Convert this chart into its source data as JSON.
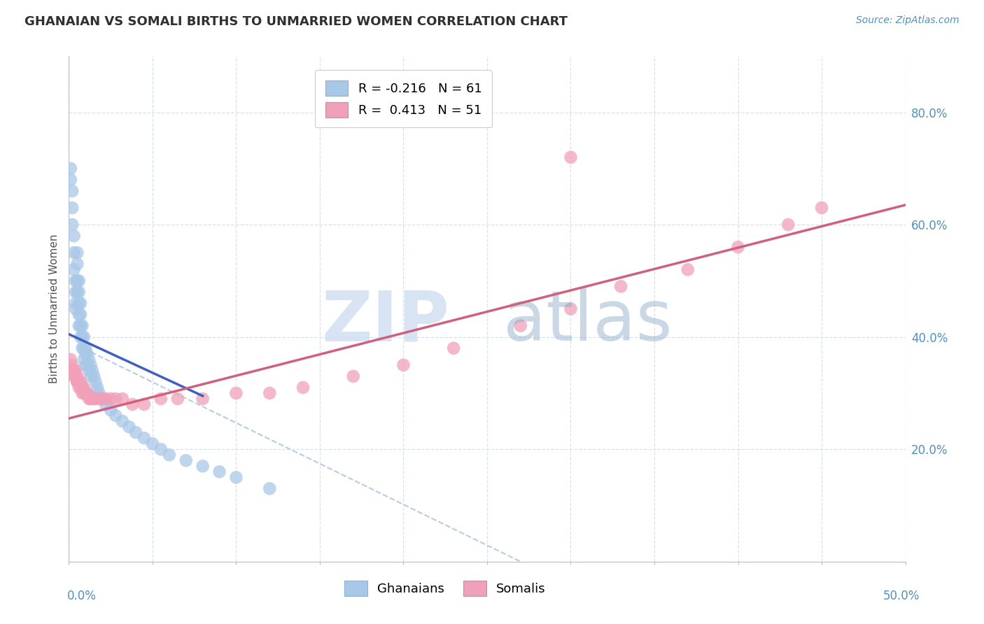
{
  "title": "GHANAIAN VS SOMALI BIRTHS TO UNMARRIED WOMEN CORRELATION CHART",
  "source": "Source: ZipAtlas.com",
  "ylabel": "Births to Unmarried Women",
  "xlim": [
    0.0,
    0.5
  ],
  "ylim": [
    0.0,
    0.9
  ],
  "legend_r1": "R = -0.216   N = 61",
  "legend_r2": "R =  0.413   N = 51",
  "ghanaian_color": "#a8c8e8",
  "somali_color": "#f0a0b8",
  "ghanaian_line_color": "#4060c0",
  "somali_line_color": "#d06080",
  "dashed_line_color": "#b8cce0",
  "ghanaians_x": [
    0.001,
    0.001,
    0.002,
    0.002,
    0.002,
    0.003,
    0.003,
    0.003,
    0.004,
    0.004,
    0.004,
    0.004,
    0.005,
    0.005,
    0.005,
    0.005,
    0.006,
    0.006,
    0.006,
    0.006,
    0.006,
    0.007,
    0.007,
    0.007,
    0.007,
    0.008,
    0.008,
    0.008,
    0.009,
    0.009,
    0.009,
    0.01,
    0.01,
    0.01,
    0.011,
    0.011,
    0.012,
    0.012,
    0.013,
    0.013,
    0.014,
    0.015,
    0.016,
    0.017,
    0.018,
    0.02,
    0.022,
    0.025,
    0.028,
    0.032,
    0.036,
    0.04,
    0.045,
    0.05,
    0.055,
    0.06,
    0.07,
    0.08,
    0.09,
    0.1,
    0.12
  ],
  "ghanaians_y": [
    0.7,
    0.68,
    0.66,
    0.63,
    0.6,
    0.58,
    0.55,
    0.52,
    0.5,
    0.48,
    0.46,
    0.45,
    0.55,
    0.53,
    0.5,
    0.48,
    0.5,
    0.48,
    0.46,
    0.44,
    0.42,
    0.46,
    0.44,
    0.42,
    0.4,
    0.42,
    0.4,
    0.38,
    0.4,
    0.38,
    0.36,
    0.38,
    0.37,
    0.35,
    0.37,
    0.35,
    0.36,
    0.34,
    0.35,
    0.33,
    0.34,
    0.33,
    0.32,
    0.31,
    0.3,
    0.29,
    0.28,
    0.27,
    0.26,
    0.25,
    0.24,
    0.23,
    0.22,
    0.21,
    0.2,
    0.19,
    0.18,
    0.17,
    0.16,
    0.15,
    0.13
  ],
  "somalis_x": [
    0.001,
    0.002,
    0.002,
    0.003,
    0.003,
    0.004,
    0.004,
    0.005,
    0.005,
    0.005,
    0.006,
    0.006,
    0.007,
    0.007,
    0.008,
    0.008,
    0.009,
    0.009,
    0.01,
    0.01,
    0.011,
    0.012,
    0.013,
    0.014,
    0.015,
    0.016,
    0.018,
    0.02,
    0.022,
    0.025,
    0.028,
    0.032,
    0.038,
    0.045,
    0.055,
    0.065,
    0.08,
    0.1,
    0.12,
    0.14,
    0.17,
    0.2,
    0.23,
    0.27,
    0.3,
    0.33,
    0.37,
    0.4,
    0.43,
    0.45,
    0.3
  ],
  "somalis_y": [
    0.36,
    0.35,
    0.34,
    0.34,
    0.33,
    0.34,
    0.33,
    0.33,
    0.32,
    0.32,
    0.32,
    0.31,
    0.32,
    0.31,
    0.31,
    0.3,
    0.31,
    0.3,
    0.3,
    0.3,
    0.3,
    0.29,
    0.29,
    0.29,
    0.29,
    0.29,
    0.29,
    0.29,
    0.29,
    0.29,
    0.29,
    0.29,
    0.28,
    0.28,
    0.29,
    0.29,
    0.29,
    0.3,
    0.3,
    0.31,
    0.33,
    0.35,
    0.38,
    0.42,
    0.45,
    0.49,
    0.52,
    0.56,
    0.6,
    0.63,
    0.72
  ],
  "ghanaian_line_x": [
    0.0,
    0.08
  ],
  "ghanaian_line_y": [
    0.405,
    0.295
  ],
  "somali_line_x": [
    0.0,
    0.5
  ],
  "somali_line_y": [
    0.255,
    0.635
  ],
  "dashed_line_x": [
    0.005,
    0.27
  ],
  "dashed_line_y": [
    0.385,
    0.0
  ],
  "background_color": "#ffffff",
  "grid_color": "#d8e0ec",
  "tick_color": "#5090c0",
  "title_color": "#303030"
}
